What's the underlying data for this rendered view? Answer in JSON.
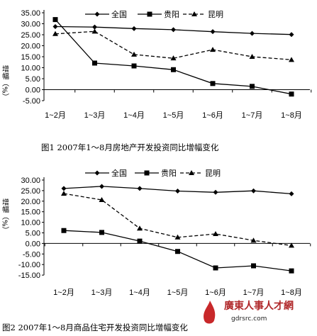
{
  "chart_data": [
    {
      "type": "line",
      "categories": [
        "1~2月",
        "1~3月",
        "1~4月",
        "1~5月",
        "1~6月",
        "1~7月",
        "1~8月"
      ],
      "ylabel": "增幅（%）",
      "yticks": [
        "35.00",
        "30.00",
        "25.00",
        "20.00",
        "15.00",
        "10.00",
        "5.00",
        "0.00",
        "-5.00"
      ],
      "ylim": [
        -5,
        35
      ],
      "legend_position": "top",
      "series": [
        {
          "name": "全国",
          "marker": "diamond",
          "dash": "solid",
          "values": [
            28.7,
            28.5,
            27.8,
            27.3,
            26.4,
            25.6,
            25.1
          ]
        },
        {
          "name": "贵阳",
          "marker": "square",
          "dash": "solid",
          "values": [
            31.9,
            12.1,
            10.8,
            9.1,
            2.8,
            1.5,
            -2.0
          ]
        },
        {
          "name": "昆明",
          "marker": "triangle",
          "dash": "dashed",
          "values": [
            25.4,
            26.5,
            16.0,
            14.3,
            18.2,
            15.0,
            13.6
          ]
        }
      ],
      "caption": "图1  2007年1～8月房地产开发投资同比增幅变化"
    },
    {
      "type": "line",
      "categories": [
        "1~2月",
        "1~3月",
        "1~4月",
        "1~5月",
        "1~6月",
        "1~7月",
        "1~8月"
      ],
      "ylabel": "增幅（%）",
      "yticks": [
        "30.00",
        "25.00",
        "20.00",
        "15.00",
        "10.00",
        "5.00",
        "0.00",
        "-5.00",
        "-10.00",
        "-15.00"
      ],
      "ylim": [
        -15,
        30
      ],
      "legend_position": "top",
      "series": [
        {
          "name": "全国",
          "marker": "diamond",
          "dash": "solid",
          "values": [
            26.0,
            27.0,
            26.0,
            24.8,
            24.2,
            24.9,
            23.5
          ]
        },
        {
          "name": "贵阳",
          "marker": "square",
          "dash": "solid",
          "values": [
            6.1,
            5.2,
            1.1,
            -3.8,
            -11.6,
            -10.6,
            -13.0
          ]
        },
        {
          "name": "昆明",
          "marker": "triangle",
          "dash": "dashed",
          "values": [
            23.6,
            20.6,
            7.1,
            2.9,
            4.5,
            1.4,
            -1.0
          ]
        }
      ],
      "caption": "图2  2007年1～8月商品住宅开发投资同比增幅变化"
    }
  ],
  "watermark": {
    "text": "廣東人事人才網",
    "url": "gdrsrc.com"
  }
}
